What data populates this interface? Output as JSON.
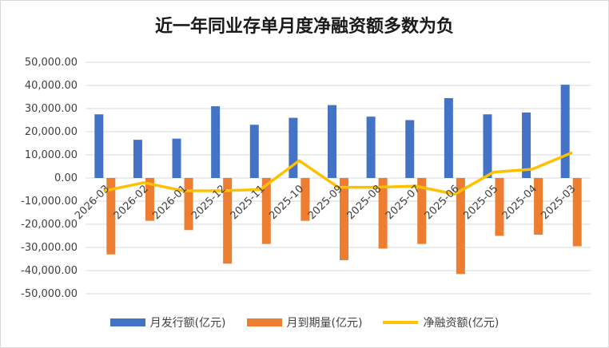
{
  "chart_data": {
    "type": "bar",
    "title": "近一年同业存单月度净融资额多数为负",
    "categories": [
      "2026-03",
      "2026-02",
      "2026-01",
      "2025-12",
      "2025-11",
      "2025-10",
      "2025-09",
      "2025-08",
      "2025-07",
      "2025-06",
      "2025-05",
      "2025-04",
      "2025-03"
    ],
    "series": [
      {
        "name": "月发行额(亿元)",
        "kind": "bar",
        "color": "#4472C4",
        "values": [
          27500,
          16500,
          17000,
          31000,
          23000,
          26000,
          31500,
          26500,
          25000,
          34500,
          27500,
          28300,
          40300
        ]
      },
      {
        "name": "月到期量(亿元)",
        "kind": "bar",
        "color": "#ED7D31",
        "values": [
          -33000,
          -18500,
          -22500,
          -37000,
          -28500,
          -18500,
          -35500,
          -30500,
          -28500,
          -41500,
          -25000,
          -24500,
          -29500
        ]
      },
      {
        "name": "净融资额(亿元)",
        "kind": "line",
        "color": "#FFC000",
        "values": [
          -5500,
          -2000,
          -5500,
          -5500,
          -5000,
          7500,
          -4000,
          -4000,
          -3500,
          -7000,
          2500,
          3800,
          10800
        ]
      }
    ],
    "ylim": [
      -50000,
      50000
    ],
    "yticks": [
      "50,000.00",
      "40,000.00",
      "30,000.00",
      "20,000.00",
      "10,000.00",
      "0.00",
      "-10,000.00",
      "-20,000.00",
      "-30,000.00",
      "-40,000.00",
      "-50,000.00"
    ],
    "grid": true,
    "legend": "bottom"
  }
}
